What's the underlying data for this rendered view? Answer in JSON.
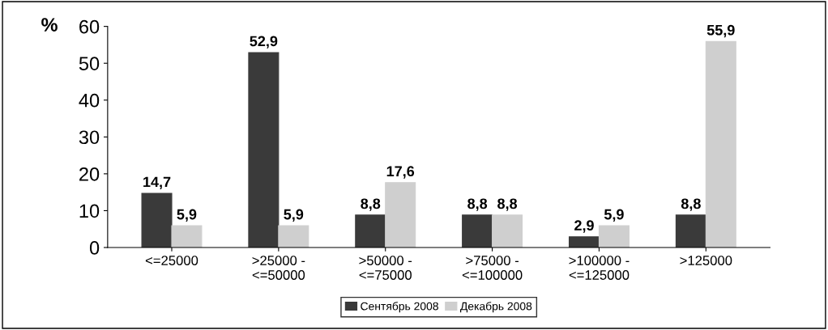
{
  "chart_data": {
    "type": "bar",
    "ylabel": "%",
    "categories": [
      "<=25000",
      ">25000 -\n<=50000",
      ">50000 -\n<=75000",
      ">75000 -\n<=100000",
      ">100000 -\n<=125000",
      ">125000"
    ],
    "series": [
      {
        "name": "Сентябрь 2008",
        "color": "#3a3a3a",
        "values": [
          14.7,
          52.9,
          8.8,
          8.8,
          2.9,
          8.8
        ],
        "value_labels": [
          "14,7",
          "52,9",
          "8,8",
          "8,8",
          "2,9",
          "8,8"
        ]
      },
      {
        "name": "Декабрь 2008",
        "color": "#cfcfcf",
        "values": [
          5.9,
          5.9,
          17.6,
          8.8,
          5.9,
          55.9
        ],
        "value_labels": [
          "5,9",
          "5,9",
          "17,6",
          "8,8",
          "5,9",
          "55,9"
        ]
      }
    ],
    "ylim": [
      0,
      60
    ],
    "yticks": [
      0,
      10,
      20,
      30,
      40,
      50,
      60
    ],
    "grid": false,
    "legend": "bottom"
  }
}
